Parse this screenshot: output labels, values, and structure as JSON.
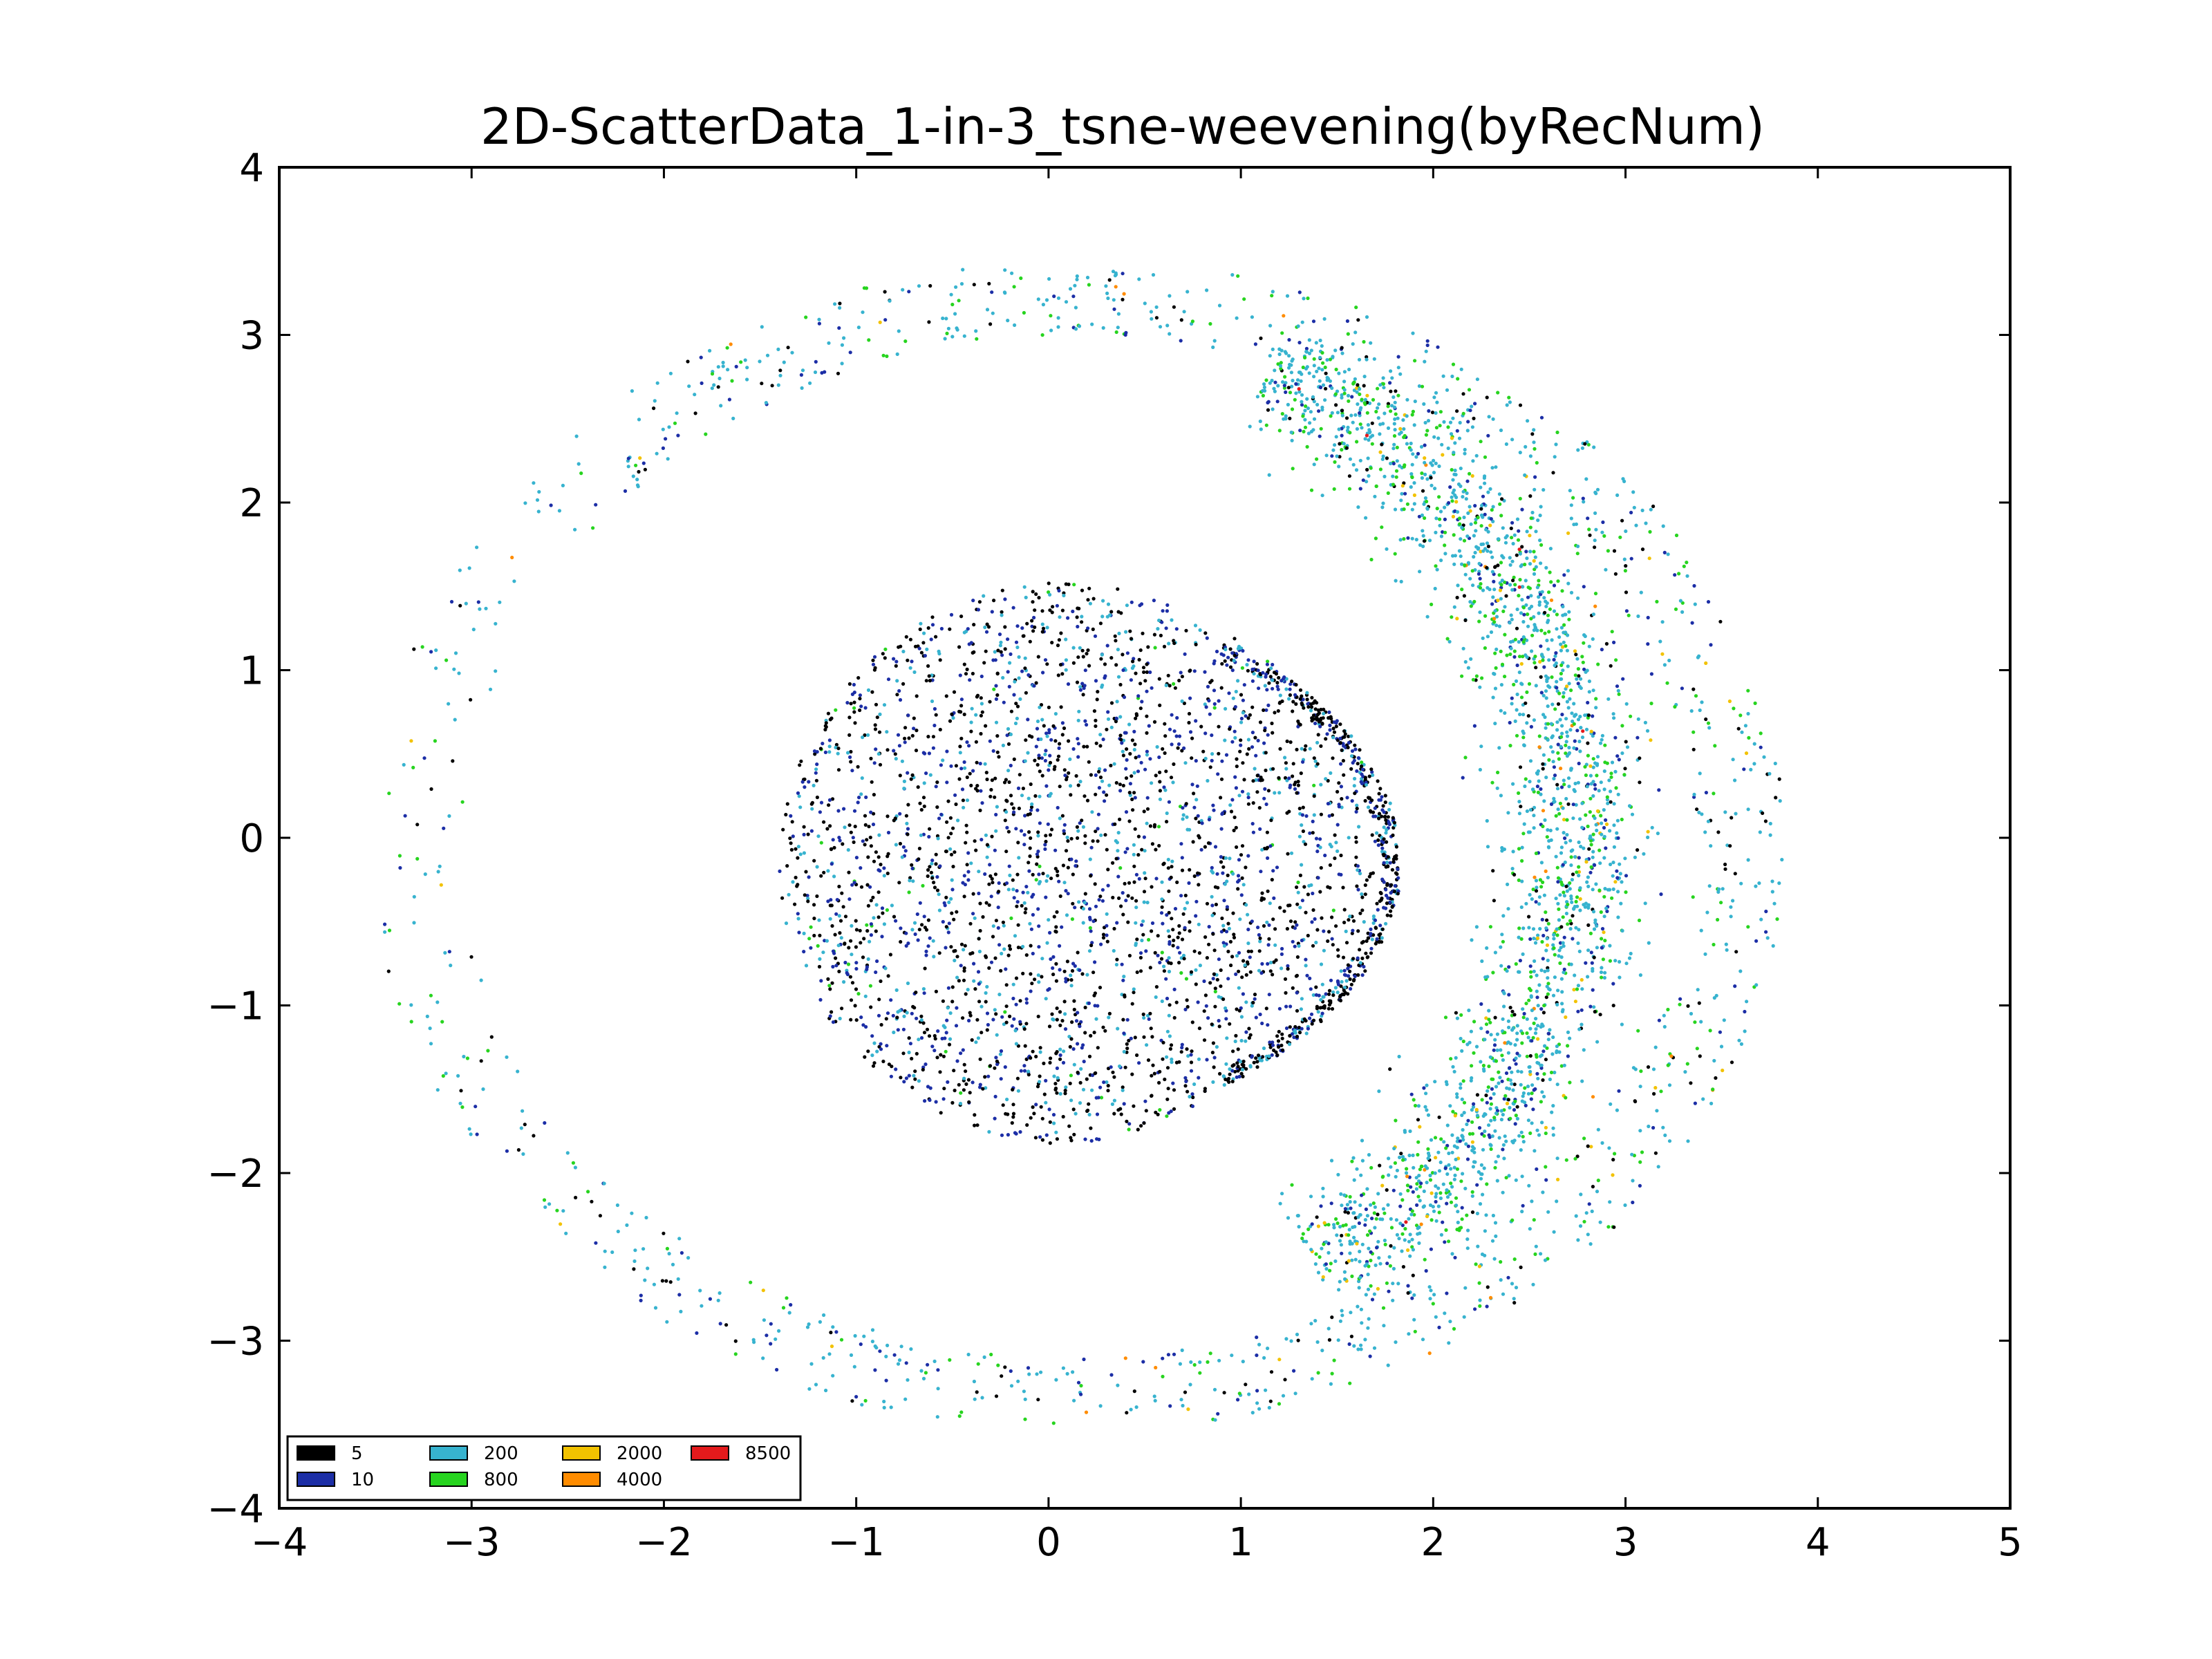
{
  "chart_data": {
    "type": "scatter",
    "title": "2D-ScatterData_1-in-3_tsne-weevening(byRecNum)",
    "xlabel": "",
    "ylabel": "",
    "xlim": [
      -4,
      5
    ],
    "ylim": [
      -4,
      4
    ],
    "x_ticks": [
      -4,
      -3,
      -2,
      -1,
      0,
      1,
      2,
      3,
      4,
      5
    ],
    "x_tick_labels": [
      "−4",
      "−3",
      "−2",
      "−1",
      "0",
      "1",
      "2",
      "3",
      "4",
      "5"
    ],
    "y_ticks": [
      -4,
      -3,
      -2,
      -1,
      0,
      1,
      2,
      3,
      4
    ],
    "y_tick_labels": [
      "−4",
      "−3",
      "−2",
      "−1",
      "0",
      "1",
      "2",
      "3",
      "4"
    ],
    "grid": false,
    "legend_position": "lower-left",
    "series": [
      {
        "name": "5",
        "color": "#000000"
      },
      {
        "name": "10",
        "color": "#1c2ea6"
      },
      {
        "name": "200",
        "color": "#37b3cf"
      },
      {
        "name": "800",
        "color": "#27d41f"
      },
      {
        "name": "2000",
        "color": "#f2c200"
      },
      {
        "name": "4000",
        "color": "#ff8c00"
      },
      {
        "name": "8500",
        "color": "#e41a1c"
      }
    ],
    "clusters": [
      {
        "shape": "ellipse",
        "center": [
          0.2,
          -0.15
        ],
        "radii": [
          1.6,
          1.7
        ],
        "note_region": "dense inner cluster, mostly 5/10/200"
      },
      {
        "shape": "crescent",
        "center": [
          2.7,
          -0.2
        ],
        "note_region": "outer crescent band, mostly 200/800"
      },
      {
        "shape": "ring",
        "center": [
          0.2,
          -0.1
        ],
        "radius": [
          3.0,
          3.4
        ],
        "note_region": "sparse outer ring"
      }
    ]
  }
}
